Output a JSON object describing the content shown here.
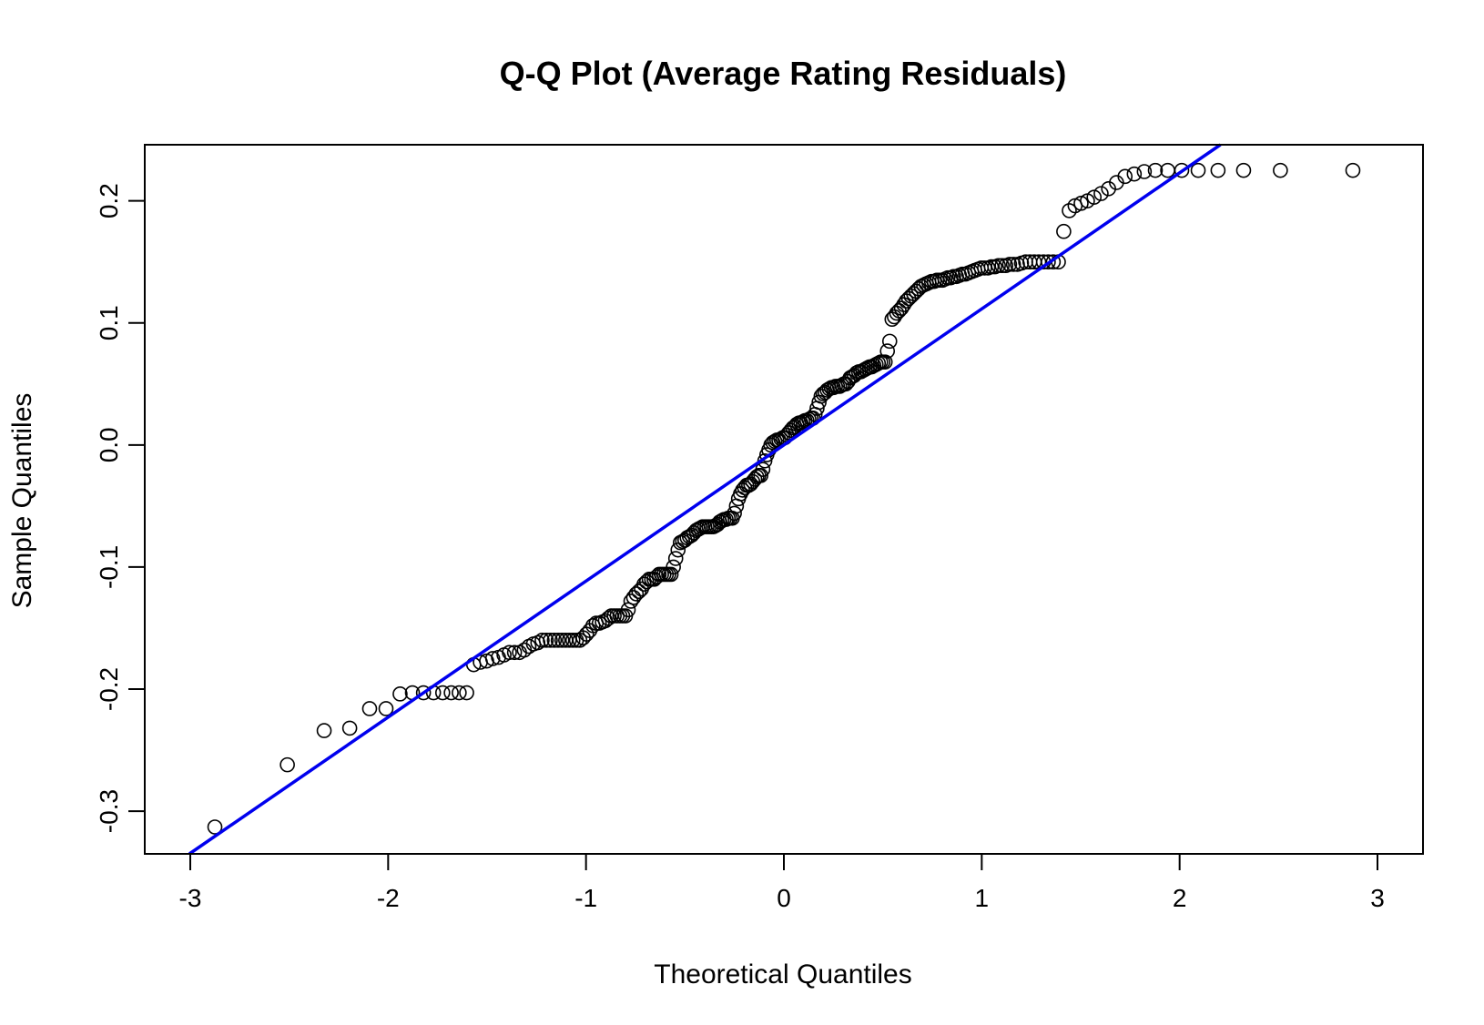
{
  "chart_data": {
    "type": "scatter",
    "title": "Q-Q Plot (Average Rating Residuals)",
    "xlabel": "Theoretical Quantiles",
    "ylabel": "Sample Quantiles",
    "xlim": [
      -3.23,
      3.23
    ],
    "ylim": [
      -0.335,
      0.246
    ],
    "xticks": [
      -3,
      -2,
      -1,
      0,
      1,
      2,
      3
    ],
    "xtick_labels": [
      "-3",
      "-2",
      "-1",
      "0",
      "1",
      "2",
      "3"
    ],
    "yticks": [
      -0.3,
      -0.2,
      -0.1,
      0.0,
      0.1,
      0.2
    ],
    "ytick_labels": [
      "-0.3",
      "-0.2",
      "-0.1",
      "0.0",
      "0.1",
      "0.2"
    ],
    "grid": false,
    "point_style": "open-circle",
    "point_color": "#000000",
    "reference_line": {
      "color": "#0000ee",
      "intercept": 0.0,
      "slope": 0.1115
    },
    "sample_quantiles": [
      -0.313,
      -0.262,
      -0.234,
      -0.232,
      -0.216,
      -0.216,
      -0.204,
      -0.203,
      -0.203,
      -0.203,
      -0.203,
      -0.203,
      -0.203,
      -0.203,
      -0.18,
      -0.178,
      -0.177,
      -0.175,
      -0.174,
      -0.172,
      -0.17,
      -0.17,
      -0.17,
      -0.168,
      -0.165,
      -0.163,
      -0.162,
      -0.16,
      -0.16,
      -0.16,
      -0.16,
      -0.16,
      -0.16,
      -0.16,
      -0.16,
      -0.16,
      -0.16,
      -0.16,
      -0.158,
      -0.155,
      -0.152,
      -0.148,
      -0.146,
      -0.146,
      -0.145,
      -0.144,
      -0.142,
      -0.14,
      -0.14,
      -0.14,
      -0.14,
      -0.14,
      -0.14,
      -0.135,
      -0.128,
      -0.125,
      -0.122,
      -0.12,
      -0.118,
      -0.114,
      -0.112,
      -0.11,
      -0.11,
      -0.11,
      -0.108,
      -0.106,
      -0.106,
      -0.106,
      -0.106,
      -0.106,
      -0.106,
      -0.1,
      -0.093,
      -0.086,
      -0.08,
      -0.079,
      -0.078,
      -0.076,
      -0.075,
      -0.074,
      -0.072,
      -0.07,
      -0.069,
      -0.068,
      -0.067,
      -0.067,
      -0.067,
      -0.067,
      -0.067,
      -0.067,
      -0.066,
      -0.065,
      -0.063,
      -0.062,
      -0.061,
      -0.061,
      -0.06,
      -0.06,
      -0.06,
      -0.056,
      -0.05,
      -0.044,
      -0.04,
      -0.037,
      -0.035,
      -0.033,
      -0.033,
      -0.032,
      -0.03,
      -0.028,
      -0.026,
      -0.025,
      -0.025,
      -0.02,
      -0.013,
      -0.008,
      -0.004,
      0.0,
      0.002,
      0.003,
      0.004,
      0.004,
      0.005,
      0.006,
      0.006,
      0.008,
      0.01,
      0.012,
      0.014,
      0.015,
      0.017,
      0.018,
      0.018,
      0.019,
      0.02,
      0.02,
      0.021,
      0.022,
      0.022,
      0.025,
      0.03,
      0.035,
      0.04,
      0.042,
      0.043,
      0.045,
      0.046,
      0.047,
      0.047,
      0.048,
      0.048,
      0.048,
      0.049,
      0.05,
      0.05,
      0.052,
      0.055,
      0.056,
      0.057,
      0.059,
      0.06,
      0.06,
      0.061,
      0.062,
      0.063,
      0.064,
      0.064,
      0.065,
      0.066,
      0.067,
      0.068,
      0.068,
      0.068,
      0.077,
      0.085,
      0.103,
      0.105,
      0.108,
      0.11,
      0.112,
      0.115,
      0.118,
      0.12,
      0.122,
      0.124,
      0.126,
      0.128,
      0.13,
      0.131,
      0.132,
      0.133,
      0.134,
      0.134,
      0.135,
      0.135,
      0.135,
      0.136,
      0.137,
      0.137,
      0.138,
      0.138,
      0.139,
      0.14,
      0.14,
      0.141,
      0.142,
      0.143,
      0.144,
      0.145,
      0.145,
      0.145,
      0.146,
      0.146,
      0.147,
      0.147,
      0.147,
      0.148,
      0.148,
      0.148,
      0.149,
      0.15,
      0.15,
      0.15,
      0.15,
      0.15,
      0.15,
      0.15,
      0.15,
      0.175,
      0.192,
      0.196,
      0.198,
      0.2,
      0.203,
      0.206,
      0.21,
      0.215,
      0.22,
      0.222,
      0.224,
      0.225,
      0.225,
      0.225,
      0.225,
      0.225,
      0.225,
      0.225,
      0.225
    ]
  }
}
